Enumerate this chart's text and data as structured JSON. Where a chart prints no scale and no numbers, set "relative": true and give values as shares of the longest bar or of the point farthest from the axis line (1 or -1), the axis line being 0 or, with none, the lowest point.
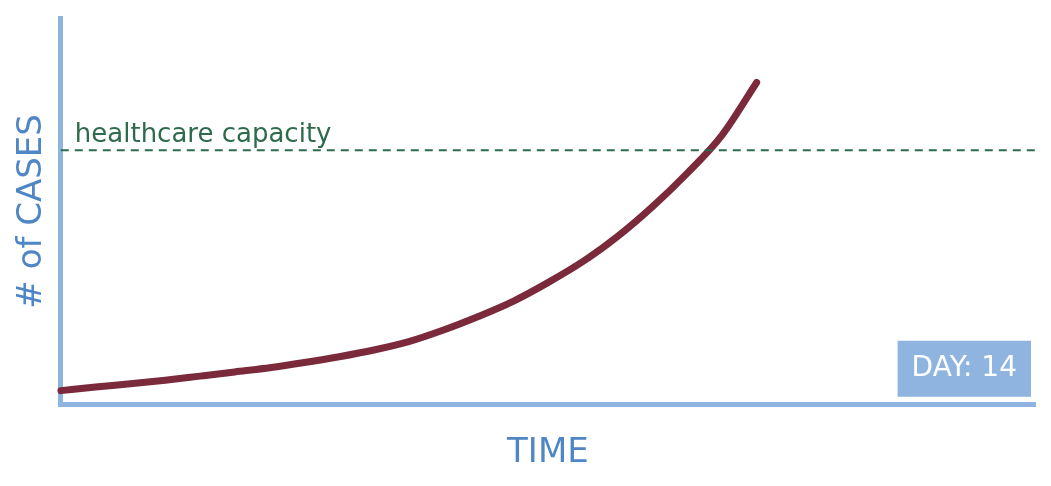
{
  "chart_data": {
    "type": "line",
    "relative": true,
    "xlabel": "TIME",
    "ylabel": "# of CASES",
    "categories": [
      null,
      null,
      null,
      null,
      null,
      null,
      null,
      null,
      null,
      null,
      null,
      null,
      null,
      null,
      null,
      null,
      null,
      null,
      null,
      null,
      null,
      null,
      null,
      null,
      null,
      null,
      null,
      null,
      null
    ],
    "series": [
      {
        "color": "#7a2a3a",
        "values": [
          0.044,
          0.055,
          0.065,
          0.076,
          0.089,
          0.102,
          0.115,
          0.131,
          0.149,
          0.17,
          0.196,
          0.232,
          0.274,
          0.321,
          0.379,
          0.444,
          0.522,
          0.614,
          0.718,
          0.836,
          1,
          null,
          null,
          null,
          null,
          null,
          null,
          null,
          null
        ]
      }
    ],
    "ref_lines": [
      {
        "axis": "y",
        "value": 0.79,
        "label": "healthcare capacity",
        "color": "#2e6b4c",
        "line_style": "dashed"
      }
    ],
    "annotations": [
      "DAY: 14"
    ],
    "grid": false,
    "legend": false,
    "marker": "none",
    "line_style": "solid"
  }
}
